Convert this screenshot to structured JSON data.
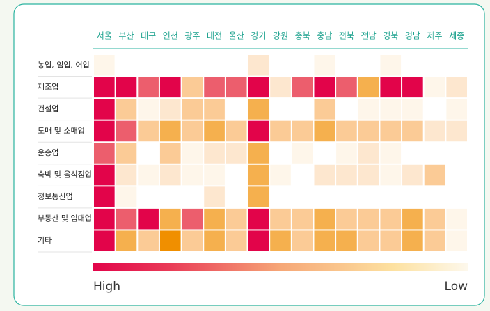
{
  "chart_data": {
    "type": "heatmap",
    "columns": [
      "서울",
      "부산",
      "대구",
      "인천",
      "광주",
      "대전",
      "울산",
      "경기",
      "강원",
      "충북",
      "충남",
      "전북",
      "전남",
      "경북",
      "경남",
      "제주",
      "세종"
    ],
    "rows": [
      "농업, 임업, 어업",
      "제조업",
      "건설업",
      "도매 및 소매업",
      "운송업",
      "숙박 및 음식점업",
      "정보통신업",
      "부동산 및 임대업",
      "기타"
    ],
    "palette": [
      "#ffffff",
      "#fef6ea",
      "#fde7cf",
      "#fbcb96",
      "#f5b04e",
      "#ec5e6d",
      "#e2044a",
      "#f08f00"
    ],
    "values": [
      [
        1,
        0,
        0,
        0,
        0,
        0,
        0,
        2,
        0,
        0,
        1,
        0,
        0,
        1,
        0,
        0,
        0
      ],
      [
        6,
        6,
        5,
        6,
        3,
        5,
        5,
        6,
        2,
        5,
        6,
        5,
        4,
        6,
        6,
        1,
        2
      ],
      [
        6,
        3,
        1,
        2,
        3,
        3,
        0,
        4,
        0,
        0,
        3,
        0,
        1,
        1,
        1,
        0,
        1
      ],
      [
        6,
        5,
        3,
        4,
        3,
        4,
        3,
        6,
        3,
        3,
        4,
        3,
        3,
        3,
        3,
        2,
        2
      ],
      [
        5,
        3,
        0,
        3,
        1,
        2,
        2,
        4,
        0,
        1,
        0,
        1,
        2,
        1,
        0,
        0,
        0
      ],
      [
        6,
        2,
        1,
        2,
        1,
        1,
        0,
        4,
        1,
        0,
        2,
        2,
        2,
        1,
        2,
        3,
        0
      ],
      [
        6,
        1,
        0,
        0,
        0,
        2,
        0,
        4,
        0,
        0,
        0,
        0,
        0,
        0,
        0,
        0,
        0
      ],
      [
        6,
        5,
        6,
        4,
        5,
        4,
        3,
        6,
        3,
        3,
        4,
        3,
        3,
        3,
        4,
        3,
        1
      ],
      [
        6,
        4,
        3,
        7,
        3,
        4,
        3,
        6,
        4,
        3,
        4,
        4,
        3,
        3,
        4,
        3,
        1
      ]
    ],
    "legend": {
      "high": "High",
      "low": "Low"
    }
  }
}
